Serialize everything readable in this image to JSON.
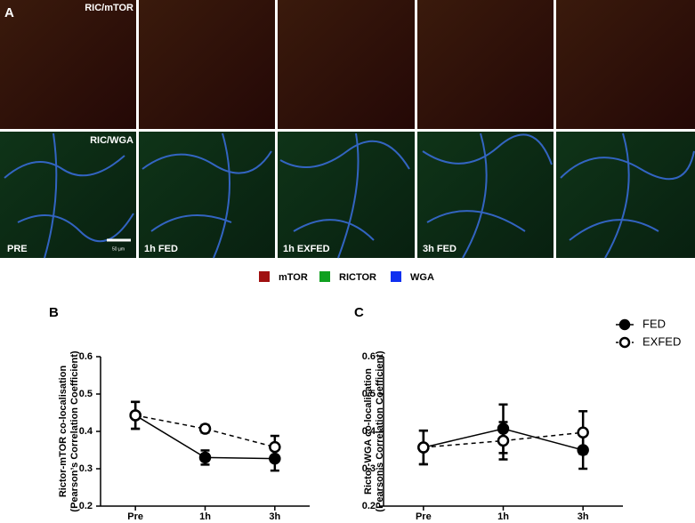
{
  "panel_a": {
    "label": "A",
    "top_row_label": "RIC/mTOR",
    "bottom_row_label": "RIC/WGA",
    "time_labels": [
      "PRE",
      "1h FED",
      "1h EXFED",
      "3h FED"
    ],
    "scale_bar": "50 µm",
    "channels": [
      {
        "name": "mTOR",
        "color": "#a01010"
      },
      {
        "name": "RICTOR",
        "color": "#10a020"
      },
      {
        "name": "WGA",
        "color": "#1030f0"
      }
    ]
  },
  "chart_data": [
    {
      "type": "line",
      "panel_label": "B",
      "ylabel": [
        "Rictor-mTOR co-localisation",
        "(Pearson’s Correlation Coefficient)"
      ],
      "categories": [
        "Pre",
        "1h",
        "3h"
      ],
      "series": [
        {
          "color": "#000000",
          "line_style": "solid",
          "marker": "filled",
          "values": [
            0.443,
            0.33,
            0.327
          ],
          "errors": [
            0.036,
            0.019,
            0.032
          ]
        },
        {
          "color": "#000000",
          "line_style": "dashed",
          "marker": "open",
          "values": [
            0.443,
            0.407,
            0.358
          ],
          "errors": [
            0.036,
            0.01,
            0.03
          ]
        }
      ],
      "ylim": [
        0.2,
        0.6
      ],
      "yticks": [
        0.2,
        0.3,
        0.4,
        0.5,
        0.6
      ]
    },
    {
      "type": "line",
      "panel_label": "C",
      "ylabel": [
        "Rictor-WGA co-localisation",
        "(Pearson’s Correlation Coefficient)"
      ],
      "categories": [
        "Pre",
        "1h",
        "3h"
      ],
      "series": [
        {
          "name": "FED",
          "color": "#000000",
          "line_style": "solid",
          "marker": "filled",
          "values": [
            0.357,
            0.407,
            0.35
          ],
          "errors": [
            0.045,
            0.065,
            0.05
          ]
        },
        {
          "name": "EXFED",
          "color": "#000000",
          "line_style": "dashed",
          "marker": "open",
          "values": [
            0.357,
            0.375,
            0.397
          ],
          "errors": [
            0.045,
            0.05,
            0.057
          ]
        }
      ],
      "ylim": [
        0.2,
        0.6
      ],
      "yticks": [
        0.2,
        0.3,
        0.4,
        0.5,
        0.6
      ],
      "legend": "top-right"
    }
  ]
}
